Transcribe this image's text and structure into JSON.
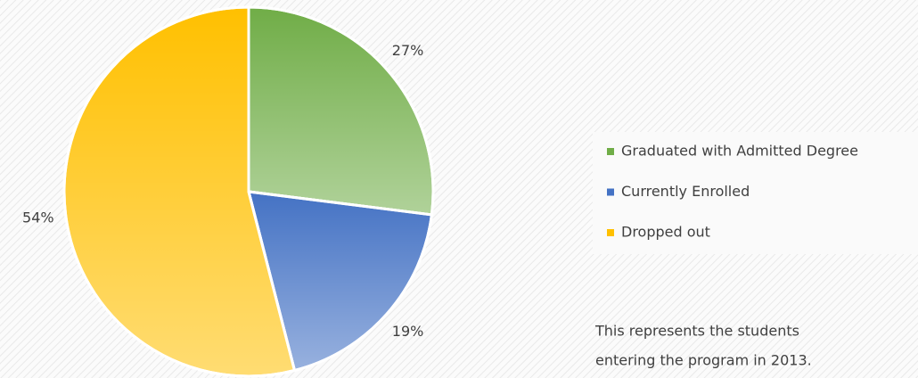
{
  "chart_data": {
    "type": "pie",
    "categories": [
      "Graduated with Admitted Degree",
      "Currently Enrolled",
      "Dropped out"
    ],
    "values": [
      27,
      19,
      54
    ],
    "value_labels": [
      "27%",
      "19%",
      "54%"
    ],
    "colors": [
      "#70ad47",
      "#4472c4",
      "#ffc000"
    ],
    "legend": "right",
    "note": [
      "This represents the students",
      "entering the program in 2013."
    ]
  }
}
